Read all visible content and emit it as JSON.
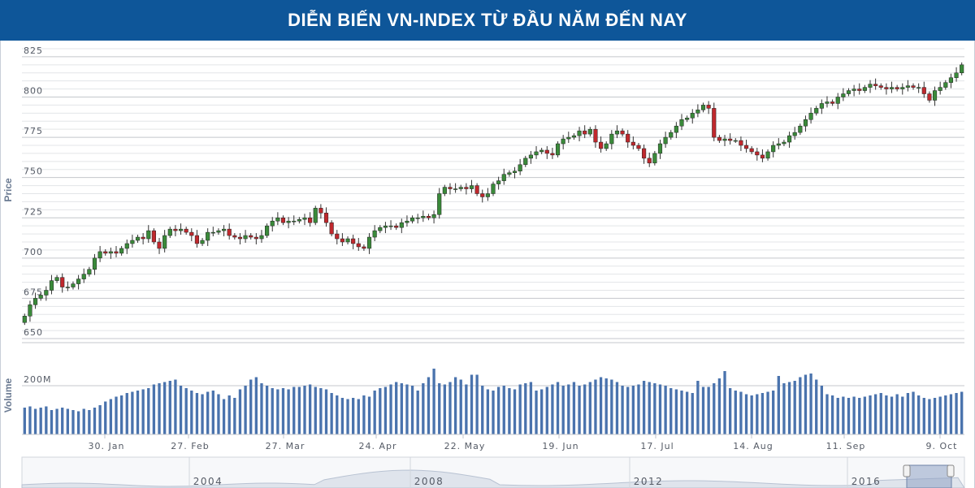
{
  "header": {
    "title": "DIỄN BIẾN VN-INDEX TỪ ĐẦU NĂM ĐẾN NAY"
  },
  "colors": {
    "header_bg": "#0e5699",
    "up": "#3a8a3a",
    "down": "#c0282d",
    "volume": "#4a73ad",
    "grid": "#d7d9dd",
    "navigator_fill": "#e4e8ee"
  },
  "chart_data": [
    {
      "type": "candlestick",
      "title": "",
      "ylabel": "Price",
      "ylim": [
        650,
        830
      ],
      "yticks": [
        650,
        675,
        700,
        725,
        750,
        775,
        800,
        825
      ],
      "ytick_labels": [
        "650",
        "675",
        "700",
        "725",
        "750",
        "775",
        "800",
        "825"
      ],
      "x_tick_labels": [
        "30. Jan",
        "27. Feb",
        "27. Mar",
        "24. Apr",
        "22. May",
        "19. Jun",
        "17. Jul",
        "14. Aug",
        "11. Sep",
        "9. Oct"
      ],
      "grid": true,
      "closes": [
        664,
        671,
        675,
        677,
        680,
        686,
        688,
        682,
        682,
        684,
        687,
        690,
        693,
        700,
        704,
        703,
        704,
        703,
        706,
        709,
        711,
        713,
        712,
        717,
        710,
        706,
        714,
        718,
        717,
        718,
        716,
        714,
        709,
        711,
        716,
        716,
        717,
        718,
        714,
        713,
        712,
        714,
        713,
        712,
        714,
        720,
        723,
        725,
        722,
        723,
        723,
        724,
        725,
        722,
        731,
        728,
        722,
        715,
        712,
        710,
        712,
        709,
        707,
        706,
        713,
        717,
        719,
        720,
        720,
        719,
        722,
        723,
        725,
        725,
        726,
        725,
        727,
        740,
        744,
        743,
        743,
        744,
        743,
        745,
        740,
        738,
        740,
        746,
        748,
        752,
        753,
        754,
        758,
        762,
        764,
        766,
        767,
        765,
        764,
        771,
        774,
        775,
        776,
        779,
        777,
        780,
        772,
        768,
        771,
        777,
        779,
        777,
        772,
        770,
        768,
        762,
        759,
        765,
        771,
        775,
        778,
        782,
        786,
        787,
        790,
        792,
        795,
        793,
        775,
        773,
        774,
        773,
        773,
        770,
        768,
        766,
        764,
        762,
        766,
        770,
        771,
        772,
        776,
        778,
        782,
        786,
        790,
        793,
        796,
        797,
        796,
        800,
        802,
        804,
        805,
        804,
        806,
        808,
        807,
        806,
        805,
        806,
        805,
        806,
        807,
        806,
        806,
        802,
        798,
        804,
        806,
        809,
        812,
        815,
        820
      ],
      "volumes": [
        110,
        115,
        105,
        110,
        115,
        100,
        105,
        110,
        105,
        100,
        95,
        105,
        100,
        110,
        120,
        135,
        145,
        155,
        160,
        170,
        175,
        180,
        185,
        190,
        205,
        210,
        215,
        220,
        225,
        200,
        190,
        180,
        170,
        165,
        175,
        180,
        165,
        145,
        160,
        150,
        185,
        200,
        225,
        235,
        210,
        200,
        190,
        185,
        190,
        185,
        195,
        195,
        200,
        205,
        195,
        190,
        185,
        170,
        160,
        150,
        145,
        150,
        145,
        160,
        155,
        180,
        190,
        195,
        205,
        215,
        210,
        205,
        200,
        180,
        210,
        235,
        270,
        210,
        205,
        215,
        235,
        225,
        205,
        245,
        245,
        200,
        185,
        180,
        195,
        200,
        190,
        185,
        205,
        210,
        215,
        180,
        185,
        195,
        205,
        215,
        200,
        205,
        215,
        200,
        205,
        215,
        225,
        235,
        230,
        225,
        215,
        200,
        195,
        200,
        205,
        220,
        215,
        210,
        205,
        200,
        190,
        185,
        180,
        175,
        170,
        220,
        195,
        195,
        210,
        230,
        260,
        190,
        180,
        175,
        165,
        160,
        165,
        170,
        175,
        180,
        240,
        210,
        215,
        220,
        235,
        245,
        250,
        225,
        200,
        165,
        160,
        150,
        155,
        150,
        155,
        150,
        155,
        160,
        165,
        170,
        160,
        155,
        165,
        155,
        170,
        175,
        160,
        150,
        145,
        150,
        155,
        160,
        165,
        170,
        175
      ],
      "volume_ylabel": "Volume",
      "volume_tick_label": "200M",
      "volume_tick_value": 200
    },
    {
      "type": "area",
      "x_tick_labels": [
        "2004",
        "2008",
        "2012",
        "2016"
      ]
    }
  ]
}
